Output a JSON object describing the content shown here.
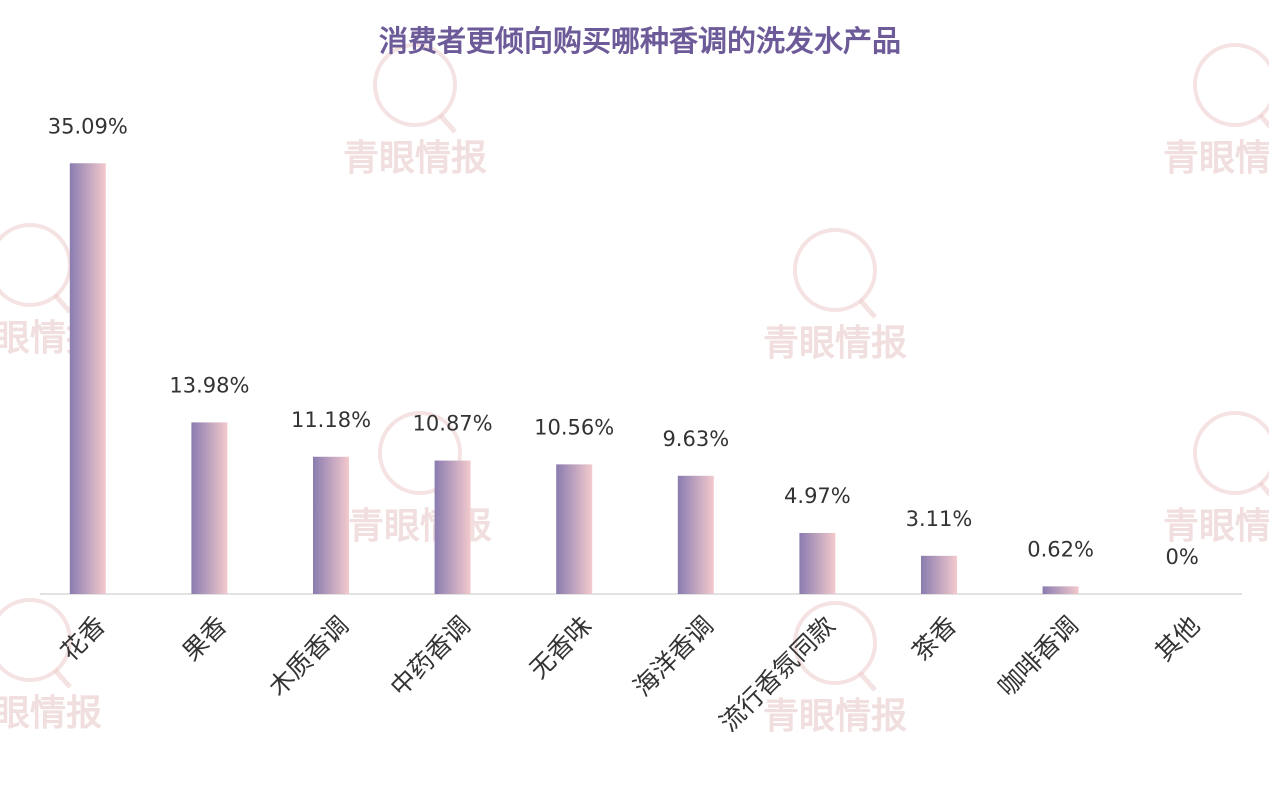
{
  "chart_data": {
    "type": "bar",
    "title": "消费者更倾向购买哪种香调的洗发水产品",
    "categories": [
      "花香",
      "果香",
      "木质香调",
      "中药香调",
      "无香味",
      "海洋香调",
      "流行香氛同款",
      "茶香",
      "咖啡香调",
      "其他"
    ],
    "values": [
      35.09,
      13.98,
      11.18,
      10.87,
      10.56,
      9.63,
      4.97,
      3.11,
      0.62,
      0
    ],
    "value_labels": [
      "35.09%",
      "13.98%",
      "11.18%",
      "10.87%",
      "10.56%",
      "9.63%",
      "4.97%",
      "3.11%",
      "0.62%",
      "0%"
    ],
    "color": [
      "#8a7cb0",
      "#f3cacd"
    ],
    "ylim": [
      0,
      40
    ],
    "watermark": "青眼情报"
  }
}
